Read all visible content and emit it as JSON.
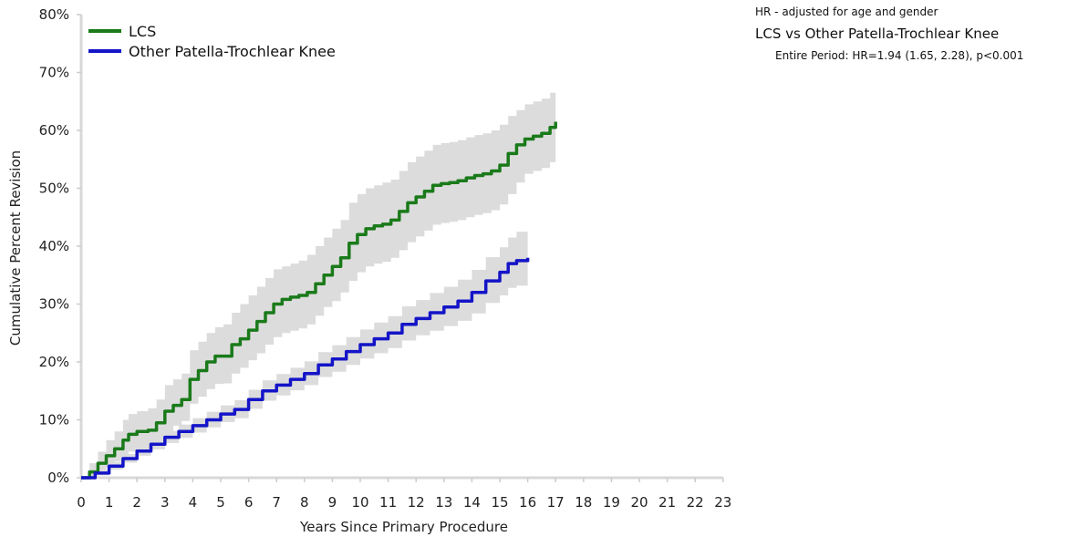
{
  "chart_data": {
    "type": "line",
    "xlabel": "Years Since Primary Procedure",
    "ylabel": "Cumulative Percent Revision",
    "xlim": [
      0,
      23
    ],
    "ylim": [
      0,
      80
    ],
    "x_ticks": [
      0,
      1,
      2,
      3,
      4,
      5,
      6,
      7,
      8,
      9,
      10,
      11,
      12,
      13,
      14,
      15,
      16,
      17,
      18,
      19,
      20,
      21,
      22,
      23
    ],
    "y_ticks": [
      "0%",
      "10%",
      "20%",
      "30%",
      "40%",
      "50%",
      "60%",
      "70%",
      "80%"
    ],
    "grid": false,
    "legend_position": "top-left",
    "series": [
      {
        "name": "LCS",
        "color": "#1a7a1a",
        "step": true,
        "x": [
          0,
          0.3,
          0.6,
          0.9,
          1.2,
          1.5,
          1.7,
          2.0,
          2.4,
          2.7,
          3.0,
          3.3,
          3.6,
          3.9,
          4.2,
          4.5,
          4.8,
          5.1,
          5.4,
          5.7,
          6.0,
          6.3,
          6.6,
          6.9,
          7.2,
          7.5,
          7.8,
          8.1,
          8.4,
          8.7,
          9.0,
          9.3,
          9.6,
          9.9,
          10.2,
          10.5,
          10.8,
          11.1,
          11.4,
          11.7,
          12.0,
          12.3,
          12.6,
          12.9,
          13.2,
          13.5,
          13.8,
          14.1,
          14.4,
          14.7,
          15.0,
          15.3,
          15.6,
          15.9,
          16.2,
          16.5,
          16.8,
          17.0
        ],
        "values": [
          0,
          1,
          2.5,
          3.8,
          5,
          6.5,
          7.5,
          8,
          8.2,
          9.5,
          11.5,
          12.5,
          13.5,
          17,
          18.5,
          20,
          21,
          21,
          23,
          24,
          25.5,
          27,
          28.5,
          30,
          30.8,
          31.2,
          31.5,
          32,
          33.5,
          35,
          36.5,
          38,
          40.5,
          42,
          43,
          43.5,
          43.8,
          44.5,
          46,
          47.5,
          48.5,
          49.5,
          50.5,
          50.8,
          51,
          51.3,
          51.8,
          52.2,
          52.5,
          53,
          54,
          56,
          57.5,
          58.5,
          59,
          59.5,
          60.5,
          61.5
        ],
        "ci_upper": [
          0.3,
          2.5,
          4.5,
          6.5,
          8,
          10,
          11,
          11.5,
          12,
          13.5,
          16,
          17,
          18,
          22,
          23.5,
          25,
          26,
          26.5,
          28.5,
          30,
          31.5,
          33,
          34.5,
          36,
          36.5,
          37,
          37.5,
          38.5,
          40,
          41.5,
          43,
          44.5,
          47.5,
          49,
          50,
          50.5,
          51,
          51.5,
          53,
          54.5,
          55.5,
          56.5,
          57.5,
          57.8,
          58,
          58.3,
          58.8,
          59.2,
          59.5,
          60,
          61,
          62.5,
          63.5,
          64.5,
          65,
          65.5,
          66.5,
          67.5
        ],
        "ci_lower": [
          0,
          0,
          0.8,
          1.8,
          2.8,
          4,
          4.5,
          5,
          5.3,
          6.3,
          8,
          9,
          9.8,
          12.8,
          14,
          15.3,
          16.2,
          16.3,
          18,
          19,
          20.3,
          21.5,
          23,
          24.3,
          25,
          25.4,
          25.8,
          26.5,
          28,
          29.5,
          30.5,
          32,
          34,
          35.5,
          36.5,
          37,
          37.3,
          38,
          39.3,
          40.7,
          41.7,
          42.7,
          43.7,
          44,
          44.2,
          44.5,
          45,
          45.4,
          45.7,
          46.2,
          47.2,
          49,
          51,
          52.5,
          53,
          53.5,
          54.5,
          55.5
        ]
      },
      {
        "name": "Other Patella-Trochlear Knee",
        "color": "#1414c8",
        "step": true,
        "x": [
          0,
          0.5,
          1.0,
          1.5,
          2.0,
          2.5,
          3.0,
          3.5,
          4.0,
          4.5,
          5.0,
          5.5,
          6.0,
          6.5,
          7.0,
          7.5,
          8.0,
          8.5,
          9.0,
          9.5,
          10.0,
          10.5,
          11.0,
          11.5,
          12.0,
          12.5,
          13.0,
          13.5,
          14.0,
          14.5,
          15.0,
          15.3,
          15.6,
          16.0
        ],
        "values": [
          0,
          0.8,
          2,
          3.3,
          4.6,
          5.8,
          7,
          8,
          9,
          10,
          11,
          11.8,
          13.5,
          15,
          16,
          17,
          18,
          19.5,
          20.5,
          21.8,
          23,
          24,
          25,
          26.5,
          27.5,
          28.5,
          29.5,
          30.5,
          32,
          34,
          35.5,
          37,
          37.5,
          38
        ],
        "ci_upper": [
          0.2,
          1.3,
          2.7,
          4.1,
          5.5,
          6.8,
          8.1,
          9.2,
          10.3,
          11.4,
          12.5,
          13.4,
          15.2,
          16.8,
          17.9,
          19,
          20.1,
          21.7,
          22.9,
          24.3,
          25.6,
          26.8,
          27.9,
          29.6,
          30.7,
          31.9,
          33,
          34.2,
          35.9,
          38.1,
          39.8,
          41.5,
          42.5,
          43
        ],
        "ci_lower": [
          0,
          0.4,
          1.4,
          2.6,
          3.8,
          4.9,
          6,
          6.9,
          7.8,
          8.7,
          9.6,
          10.3,
          11.9,
          13.3,
          14.2,
          15.1,
          16,
          17.4,
          18.3,
          19.5,
          20.6,
          21.5,
          22.4,
          23.7,
          24.6,
          25.4,
          26.2,
          27.1,
          28.4,
          30.2,
          31.5,
          32.8,
          33.2,
          33.5
        ]
      }
    ]
  },
  "notes": {
    "adjust": "HR - adjusted for age and gender",
    "comparison": "LCS vs Other Patella-Trochlear Knee",
    "period": "Entire Period: HR=1.94 (1.65, 2.28), p<0.001"
  }
}
